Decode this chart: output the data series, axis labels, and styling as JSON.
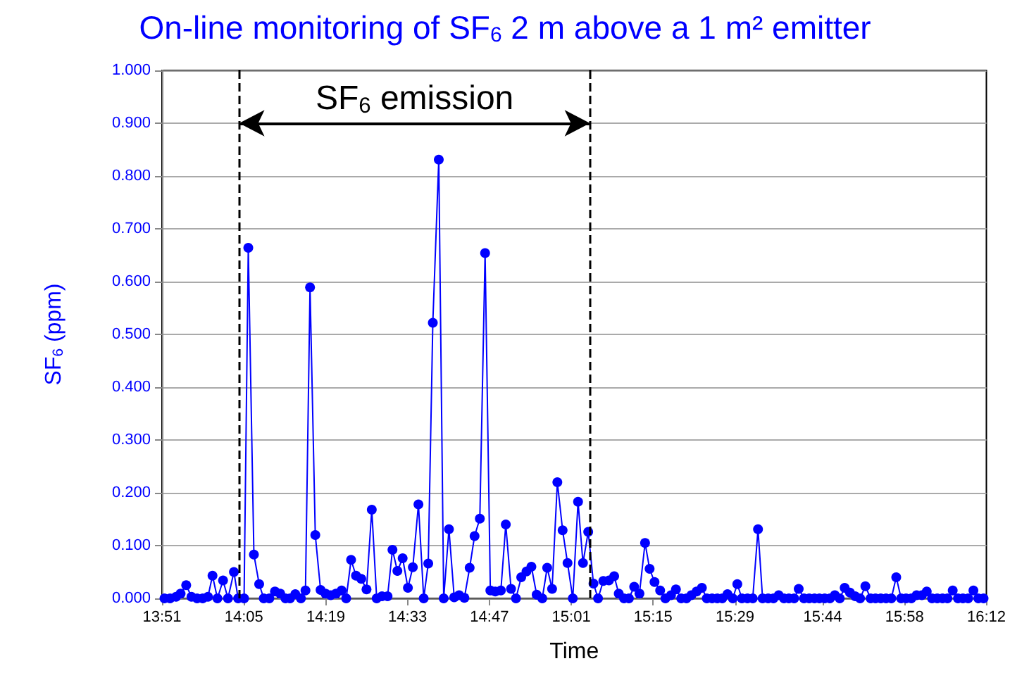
{
  "chart_data": {
    "type": "line",
    "title": "On-line monitoring of SF$_{6}$ 2 m above a 1 m² emitter",
    "xlabel": "Time",
    "ylabel": "SF$_{6}$ (ppm)",
    "annotations": [
      "SF$_{6}$ emission"
    ],
    "x": [
      13.857,
      13.873,
      13.89,
      13.903,
      13.919,
      13.934,
      13.95,
      13.966,
      13.981,
      13.994,
      14.008,
      14.024,
      14.038,
      14.055,
      14.067,
      14.084,
      14.096,
      14.112,
      14.127,
      14.14,
      14.156,
      14.172,
      14.187,
      14.202,
      14.215,
      14.23,
      14.246,
      14.259,
      14.272,
      14.287,
      14.302,
      14.316,
      14.331,
      14.346,
      14.362,
      14.375,
      14.389,
      14.403,
      14.418,
      14.433,
      14.448,
      14.462,
      14.477,
      14.493,
      14.507,
      14.521,
      14.536,
      14.551,
      14.565,
      14.581,
      14.596,
      14.609,
      14.622,
      14.639,
      14.653,
      14.668,
      14.683,
      14.697,
      14.712,
      14.727,
      14.741,
      14.756,
      14.771,
      14.786,
      14.8,
      14.816,
      14.83,
      14.845,
      14.859,
      14.874,
      14.889,
      14.903,
      14.918,
      14.934,
      14.948,
      14.962,
      14.977,
      14.992,
      15.006,
      15.021,
      15.036,
      15.05,
      15.065,
      15.08,
      15.093,
      15.108,
      15.124,
      15.139,
      15.152,
      15.167,
      15.181,
      15.196,
      15.211,
      15.227,
      15.24,
      15.254,
      15.27,
      15.285,
      15.301,
      15.315,
      15.33,
      15.345,
      15.359,
      15.374,
      15.389,
      15.403,
      15.418,
      15.433,
      15.447,
      15.462,
      15.477,
      15.49,
      15.503,
      15.519,
      15.534,
      15.549,
      15.562,
      15.578,
      15.593,
      15.608,
      15.623,
      15.637,
      15.652,
      15.665,
      15.68,
      15.695,
      15.71,
      15.724,
      15.739,
      15.754,
      15.768,
      15.782,
      15.796,
      15.811,
      15.826,
      15.84,
      15.855,
      15.87,
      15.884,
      15.899,
      15.914,
      15.929,
      15.943,
      15.957,
      15.971,
      15.986,
      16.001,
      16.016,
      16.03,
      16.045,
      16.06,
      16.075,
      16.089,
      16.104,
      16.119,
      16.133,
      16.148,
      16.163,
      16.177,
      16.192
    ],
    "series": [
      {
        "color": "#0000ff",
        "values": [
          0,
          0,
          0.003,
          0.009,
          0.025,
          0.003,
          0,
          0,
          0.003,
          0.043,
          0,
          0.034,
          0,
          0.05,
          0,
          0,
          0.664,
          0.083,
          0.027,
          0,
          0,
          0.013,
          0.009,
          0,
          0,
          0.008,
          0,
          0.015,
          0.589,
          0.12,
          0.016,
          0.009,
          0.006,
          0.009,
          0.015,
          0,
          0.073,
          0.043,
          0.037,
          0.017,
          0.168,
          0,
          0.004,
          0.004,
          0.092,
          0.052,
          0.076,
          0.02,
          0.059,
          0.178,
          0,
          0.066,
          0.522,
          0.831,
          0,
          0.131,
          0.002,
          0.006,
          0.001,
          0.058,
          0.118,
          0.151,
          0.654,
          0.015,
          0.013,
          0.015,
          0.14,
          0.018,
          0,
          0.04,
          0.051,
          0.06,
          0.007,
          0,
          0.058,
          0.018,
          0.22,
          0.129,
          0.067,
          0,
          0.183,
          0.067,
          0.126,
          0.028,
          0,
          0.033,
          0.034,
          0.042,
          0.009,
          0,
          0,
          0.022,
          0.009,
          0.105,
          0.056,
          0.031,
          0.015,
          0,
          0.006,
          0.017,
          0,
          0,
          0.006,
          0.013,
          0.02,
          0,
          0,
          0,
          0,
          0.008,
          0,
          0.027,
          0,
          0,
          0,
          0.131,
          0,
          0,
          0,
          0.006,
          0,
          0,
          0,
          0.018,
          0,
          0,
          0,
          0,
          0,
          0,
          0.006,
          0,
          0.02,
          0.011,
          0.004,
          0,
          0.023,
          0,
          0,
          0,
          0,
          0,
          0.04,
          0,
          0,
          0,
          0.006,
          0.006,
          0.013,
          0,
          0,
          0,
          0,
          0.015,
          0,
          0,
          0,
          0.015,
          0,
          0
        ]
      }
    ],
    "xlim": [
      13.85,
      16.2
    ],
    "xticks": [
      {
        "value": 13.85,
        "label": "13:51"
      },
      {
        "value": 14.0833,
        "label": "14:05"
      },
      {
        "value": 14.3167,
        "label": "14:19"
      },
      {
        "value": 14.55,
        "label": "14:33"
      },
      {
        "value": 14.7833,
        "label": "14:47"
      },
      {
        "value": 15.0167,
        "label": "15:01"
      },
      {
        "value": 15.25,
        "label": "15:15"
      },
      {
        "value": 15.4833,
        "label": "15:29"
      },
      {
        "value": 15.7333,
        "label": "15:44"
      },
      {
        "value": 15.9667,
        "label": "15:58"
      },
      {
        "value": 16.2,
        "label": "16:12"
      }
    ],
    "ylim": [
      0,
      1
    ],
    "yticks": [
      {
        "value": 0,
        "label": "0.000"
      },
      {
        "value": 0.1,
        "label": "0.100"
      },
      {
        "value": 0.2,
        "label": "0.200"
      },
      {
        "value": 0.3,
        "label": "0.300"
      },
      {
        "value": 0.4,
        "label": "0.400"
      },
      {
        "value": 0.5,
        "label": "0.500"
      },
      {
        "value": 0.6,
        "label": "0.600"
      },
      {
        "value": 0.7,
        "label": "0.700"
      },
      {
        "value": 0.8,
        "label": "0.800"
      },
      {
        "value": 0.9,
        "label": "0.900"
      },
      {
        "value": 1,
        "label": "1.000"
      }
    ],
    "ref_lines": [
      {
        "axis": "x",
        "value": 14.07,
        "color": "#000000",
        "line_style": "dashed"
      },
      {
        "axis": "x",
        "value": 15.07,
        "color": "#000000",
        "line_style": "dashed"
      }
    ],
    "grid": "y",
    "marker": "circle",
    "line_style": "solid"
  }
}
